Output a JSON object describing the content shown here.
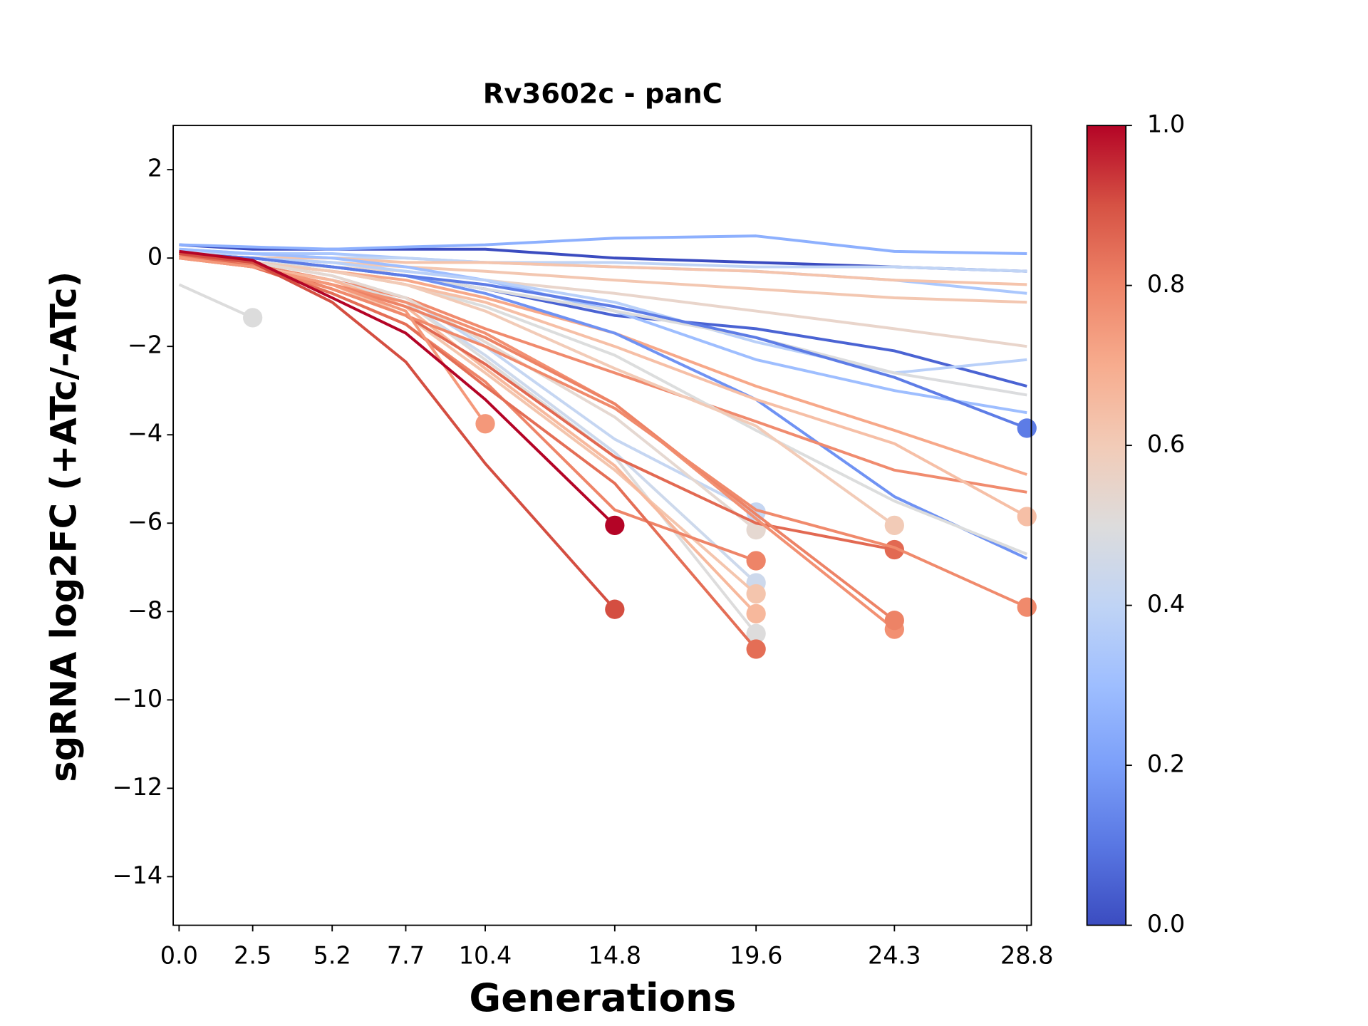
{
  "chart_data": {
    "type": "line",
    "title": "Rv3602c - panC",
    "x_label": "Generations",
    "y_label": "sgRNA log2FC (+ATc/-ATc)",
    "x": [
      0,
      2.5,
      5.2,
      7.7,
      10.4,
      14.8,
      19.6,
      24.3,
      28.8
    ],
    "xlim": [
      -0.2,
      28.95
    ],
    "xticks": [
      {
        "value": 0,
        "label": "0.0"
      },
      2.5,
      5.2,
      7.7,
      10.4,
      14.8,
      19.6,
      24.3,
      28.8
    ],
    "ylim": [
      -15.1,
      3
    ],
    "yticks": [
      {
        "value": -14,
        "label": "−14"
      },
      {
        "value": -12,
        "label": "−12"
      },
      {
        "value": -10,
        "label": "−10"
      },
      {
        "value": -8,
        "label": "−8"
      },
      {
        "value": -6,
        "label": "−6"
      },
      {
        "value": -4,
        "label": "−4"
      },
      {
        "value": -2,
        "label": "−2"
      },
      0,
      2
    ],
    "colorbar": {
      "clim": [
        0,
        1
      ],
      "ticks": [
        {
          "value": 0,
          "label": "0.0"
        },
        0.2,
        0.4,
        0.6,
        0.8,
        {
          "value": 1,
          "label": "1.0"
        }
      ]
    },
    "series": [
      {
        "color": "#3b4cc0",
        "end_marker": false,
        "values": [
          0.3,
          0.2,
          0.2,
          0.2,
          0.2,
          0,
          -0.1,
          -0.2,
          -0.3
        ]
      },
      {
        "color": "#8db0fe",
        "end_marker": false,
        "values": [
          0.3,
          0.25,
          0.2,
          0.25,
          0.3,
          0.45,
          0.5,
          0.15,
          0.1
        ]
      },
      {
        "color": "#aac7fd",
        "end_marker": false,
        "values": [
          0.2,
          0.1,
          0.1,
          0,
          -0.1,
          -0.2,
          -0.3,
          -0.5,
          -0.8
        ]
      },
      {
        "color": "#c0d4f5",
        "end_marker": false,
        "values": [
          0.1,
          0.1,
          0,
          0,
          -0.1,
          -0.1,
          -0.2,
          -0.2,
          -0.3
        ]
      },
      {
        "color": "#f3c7b1",
        "end_marker": false,
        "values": [
          0.1,
          0,
          -0.1,
          -0.2,
          -0.3,
          -0.5,
          -0.7,
          -0.9,
          -1.0
        ]
      },
      {
        "color": "#f5c4ac",
        "end_marker": false,
        "values": [
          0,
          0,
          0,
          -0.1,
          -0.1,
          -0.2,
          -0.3,
          -0.5,
          -0.6
        ]
      },
      {
        "color": "#e9d5cb",
        "end_marker": false,
        "values": [
          0,
          -0.1,
          -0.2,
          -0.3,
          -0.5,
          -0.8,
          -1.2,
          -1.6,
          -2.0
        ]
      },
      {
        "color": "#4a63d3",
        "end_marker": false,
        "values": [
          0.1,
          0,
          -0.2,
          -0.4,
          -0.7,
          -1.3,
          -1.6,
          -2.1,
          -2.9
        ]
      },
      {
        "color": "#9ebeff",
        "end_marker": false,
        "values": [
          0.2,
          0.1,
          0,
          -0.2,
          -0.5,
          -1.2,
          -2.3,
          -3.0,
          -3.5
        ]
      },
      {
        "color": "#b9d0f9",
        "end_marker": false,
        "values": [
          0.1,
          0,
          -0.1,
          -0.3,
          -0.5,
          -1.0,
          -1.9,
          -2.6,
          -2.3
        ]
      },
      {
        "color": "#dbdcde",
        "end_marker": false,
        "values": [
          0,
          -0.1,
          -0.2,
          -0.4,
          -0.7,
          -1.2,
          -1.8,
          -2.6,
          -3.1
        ]
      },
      {
        "color": "#f7a889",
        "end_marker": false,
        "values": [
          0,
          -0.1,
          -0.3,
          -0.5,
          -0.9,
          -1.7,
          -2.9,
          -3.9,
          -4.9
        ]
      },
      {
        "color": "#6f92f3",
        "end_marker": false,
        "values": [
          0.1,
          0,
          -0.2,
          -0.4,
          -0.8,
          -1.7,
          -3.2,
          -5.4,
          -6.8
        ]
      },
      {
        "color": "#f08b6e",
        "end_marker": false,
        "values": [
          0.05,
          -0.15,
          -0.5,
          -0.9,
          -1.6,
          -2.6,
          -3.7,
          -4.8,
          -5.3
        ]
      },
      {
        "color": "#dcdddd",
        "end_marker": false,
        "values": [
          0,
          -0.1,
          -0.3,
          -0.6,
          -1.1,
          -2.2,
          -3.9,
          -5.5,
          -6.7
        ]
      },
      {
        "color": "#5d7ce6",
        "end_marker": true,
        "values": [
          0.1,
          0,
          -0.2,
          -0.4,
          -0.6,
          -1.1,
          -1.8,
          -2.7,
          -3.85
        ]
      },
      {
        "color": "#f6bfa6",
        "end_marker": true,
        "values": [
          0,
          -0.1,
          -0.3,
          -0.6,
          -1.0,
          -2.0,
          -3.2,
          -4.2,
          -5.85
        ]
      },
      {
        "color": "#f2cbb7",
        "end_marker": true,
        "values": [
          0,
          -0.1,
          -0.3,
          -0.6,
          -1.2,
          -2.5,
          -3.8,
          -6.05,
          null
        ]
      },
      {
        "color": "#c5d6f2",
        "end_marker": true,
        "values": [
          0,
          -0.1,
          -0.4,
          -0.9,
          -2.0,
          -4.1,
          -5.75,
          null,
          null
        ]
      },
      {
        "color": "#e5d8d1",
        "end_marker": true,
        "values": [
          0,
          -0.1,
          -0.4,
          -0.9,
          -1.9,
          -3.6,
          -6.15,
          null,
          null
        ]
      },
      {
        "color": "#cdd9ec",
        "end_marker": true,
        "values": [
          0,
          -0.2,
          -0.5,
          -1.0,
          -2.2,
          -4.4,
          -7.35,
          null,
          null
        ]
      },
      {
        "color": "#dddcdc",
        "end_marker": true,
        "values": [
          0,
          -0.2,
          -0.5,
          -1.0,
          -2.3,
          -4.5,
          -8.5,
          null,
          null
        ]
      },
      {
        "color": "#f4c5ad",
        "end_marker": true,
        "values": [
          0,
          -0.2,
          -0.6,
          -1.3,
          -2.6,
          -4.8,
          -7.6,
          null,
          null
        ]
      },
      {
        "color": "#f7b89c",
        "end_marker": true,
        "values": [
          0,
          -0.2,
          -0.5,
          -1.1,
          -2.5,
          -4.7,
          -8.05,
          null,
          null
        ]
      },
      {
        "color": "#e26952",
        "end_marker": true,
        "values": [
          0.1,
          -0.15,
          -0.7,
          -1.3,
          -2.4,
          -4.5,
          -6.0,
          -6.6,
          null
        ]
      },
      {
        "color": "#f29072",
        "end_marker": true,
        "values": [
          0.05,
          -0.2,
          -0.6,
          -1.0,
          -1.7,
          -3.3,
          -5.9,
          -8.4,
          null
        ]
      },
      {
        "color": "#ed8366",
        "end_marker": true,
        "values": [
          0,
          -0.2,
          -0.6,
          -1.1,
          -1.8,
          -3.3,
          -5.8,
          -8.2,
          null
        ]
      },
      {
        "color": "#f08a6c",
        "end_marker": true,
        "values": [
          0.05,
          -0.2,
          -0.7,
          -1.3,
          -2.0,
          -3.4,
          -5.7,
          -6.55,
          -7.9
        ]
      },
      {
        "color": "#ee8468",
        "end_marker": true,
        "values": [
          0.1,
          -0.15,
          -0.8,
          -1.5,
          -2.8,
          -5.7,
          -6.85,
          null,
          null
        ]
      },
      {
        "color": "#e46e56",
        "end_marker": true,
        "values": [
          0.1,
          -0.2,
          -0.8,
          -1.5,
          -2.9,
          -5.1,
          -8.85,
          null,
          null
        ]
      },
      {
        "color": "#f4987a",
        "end_marker": true,
        "values": [
          0,
          -0.2,
          -0.6,
          -1.2,
          -3.75,
          null,
          null,
          null,
          null
        ]
      },
      {
        "color": "#d44e41",
        "end_marker": true,
        "values": [
          0.1,
          -0.1,
          -1.0,
          -2.35,
          -4.65,
          -7.95,
          null,
          null,
          null
        ]
      },
      {
        "color": "#b40426",
        "end_marker": true,
        "values": [
          0.15,
          -0.05,
          -0.9,
          -1.7,
          -3.2,
          -6.05,
          null,
          null,
          null
        ]
      },
      {
        "color": "#dcdcdc",
        "end_marker": true,
        "values": [
          -0.6,
          -1.35,
          null,
          null,
          null,
          null,
          null,
          null,
          null
        ]
      }
    ]
  }
}
